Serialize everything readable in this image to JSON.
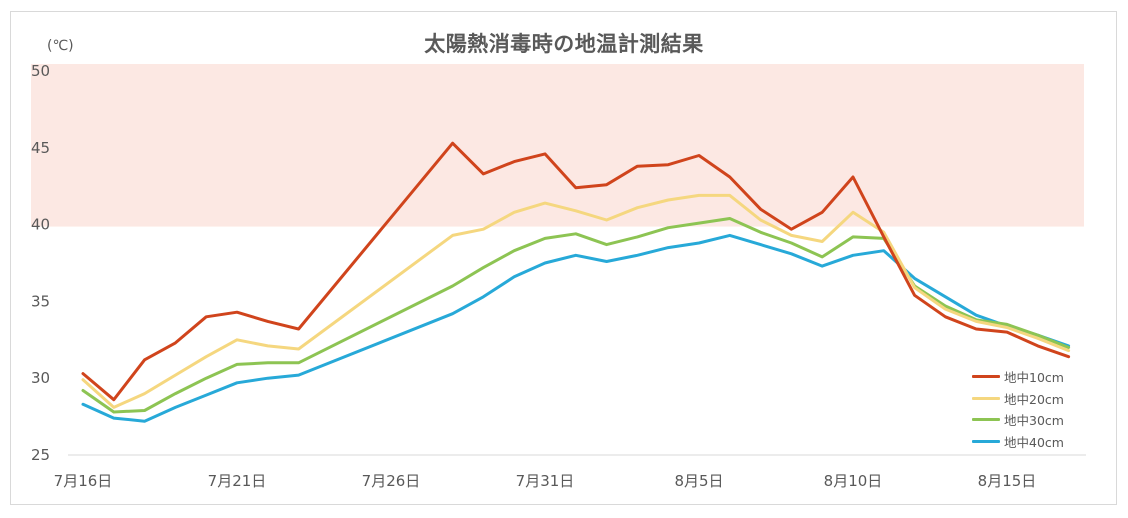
{
  "chart_data": {
    "type": "line",
    "title": "太陽熱消毒時の地温計測結果",
    "ylabel": "(℃)",
    "xlabel": "",
    "ylim": [
      25,
      50
    ],
    "yticks": [
      25,
      30,
      35,
      40,
      45,
      50
    ],
    "x_tick_labels": [
      "7月16日",
      "7月21日",
      "7月26日",
      "7月31日",
      "8月5日",
      "8月10日",
      "8月15日"
    ],
    "x_tick_indices": [
      0,
      5,
      10,
      15,
      20,
      25,
      30
    ],
    "grid": false,
    "legend_position": "lower right",
    "highlight_band": {
      "from": 40,
      "to": 50,
      "color": "#fce8e3"
    },
    "categories": [
      "7/16",
      "7/17",
      "7/18",
      "7/19",
      "7/20",
      "7/21",
      "7/22",
      "7/23",
      "7/24",
      "7/25",
      "7/26",
      "7/27",
      "7/28",
      "7/29",
      "7/30",
      "7/31",
      "8/1",
      "8/2",
      "8/3",
      "8/4",
      "8/5",
      "8/6",
      "8/7",
      "8/8",
      "8/9",
      "8/10",
      "8/11",
      "8/12",
      "8/13",
      "8/14",
      "8/15",
      "8/16",
      "8/17"
    ],
    "series": [
      {
        "name": "地中10cm",
        "color": "#d0441c",
        "values": [
          30.3,
          28.6,
          31.2,
          32.3,
          34.0,
          34.3,
          33.7,
          33.2,
          null,
          null,
          null,
          null,
          45.3,
          43.3,
          44.1,
          44.6,
          42.4,
          42.6,
          43.8,
          43.9,
          44.5,
          43.1,
          41.0,
          39.7,
          40.8,
          43.1,
          39.2,
          35.4,
          34.0,
          33.2,
          33.0,
          32.1,
          31.4
        ]
      },
      {
        "name": "地中20cm",
        "color": "#f5d77f",
        "values": [
          29.9,
          28.1,
          29.0,
          30.2,
          31.4,
          32.5,
          32.1,
          31.9,
          null,
          null,
          null,
          null,
          39.3,
          39.7,
          40.8,
          41.4,
          40.9,
          40.3,
          41.1,
          41.6,
          41.9,
          41.9,
          40.3,
          39.3,
          38.9,
          40.8,
          39.5,
          35.9,
          34.5,
          33.7,
          33.3,
          32.6,
          31.8
        ]
      },
      {
        "name": "地中30cm",
        "color": "#8dc453",
        "values": [
          29.2,
          27.8,
          27.9,
          29.0,
          30.0,
          30.9,
          31.0,
          31.0,
          null,
          null,
          null,
          null,
          36.0,
          37.2,
          38.3,
          39.1,
          39.4,
          38.7,
          39.2,
          39.8,
          40.1,
          40.4,
          39.5,
          38.8,
          37.9,
          39.2,
          39.1,
          36.0,
          34.7,
          33.8,
          33.5,
          32.8,
          32.0
        ]
      },
      {
        "name": "地中40cm",
        "color": "#27a9d8",
        "values": [
          28.3,
          27.4,
          27.2,
          28.1,
          28.9,
          29.7,
          30.0,
          30.2,
          null,
          null,
          null,
          null,
          34.2,
          35.3,
          36.6,
          37.5,
          38.0,
          37.6,
          38.0,
          38.5,
          38.8,
          39.3,
          38.7,
          38.1,
          37.3,
          38.0,
          38.3,
          36.5,
          35.3,
          34.1,
          33.4,
          32.8,
          32.1
        ]
      }
    ]
  },
  "chart": {
    "title": "太陽熱消毒時の地温計測結果",
    "unit": "(℃)",
    "legend": [
      {
        "label": "地中10cm",
        "color": "#d0441c"
      },
      {
        "label": "地中20cm",
        "color": "#f5d77f"
      },
      {
        "label": "地中30cm",
        "color": "#8dc453"
      },
      {
        "label": "地中40cm",
        "color": "#27a9d8"
      }
    ]
  }
}
